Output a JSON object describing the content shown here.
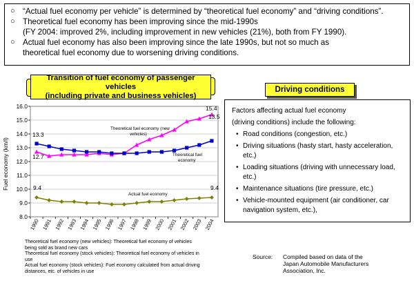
{
  "bullets": [
    {
      "marker": "○",
      "text": "“Actual fuel economy per vehicle” is determined by “theoretical fuel economy” and “driving conditions”."
    },
    {
      "marker": "○",
      "text": "Theoretical fuel economy has been improving since the mid-1990s\n(FY 2004: improved 2%, including improvement in new vehicles (21%), both from FY 1990)."
    },
    {
      "marker": "○",
      "text": " Actual fuel economy has also been improving since the late 1990s, but not so much as\ntheoretical fuel economy due to worsening driving conditions."
    }
  ],
  "chart_title": "Transition of fuel economy of passenger vehicles\n(including private and business vehicles)",
  "driving": {
    "title": "Driving conditions",
    "intro_line1": "Factors affecting actual fuel economy",
    "intro_line2": " (driving conditions) include the following:",
    "items": [
      "Road conditions (congestion, etc.)",
      "Driving situations (hasty start, hasty acceleration, etc.)",
      "Loading situations (driving with unnecessary load, etc.)",
      "Maintenance situations (tire pressure, etc.)",
      "Vehicle-mounted equipment (air conditioner, car navigation system, etc.),"
    ],
    "bullet_char": "•"
  },
  "chart_data": {
    "type": "line",
    "title": "Transition of fuel economy of passenger vehicles (including private and business vehicles)",
    "ylabel": "Fuel economy (km/l)",
    "xlabel": "",
    "ylim": [
      8.0,
      16.0
    ],
    "yticks": [
      "8.0",
      "9.0",
      "10.0",
      "11.0",
      "12.0",
      "13.0",
      "14.0",
      "15.0",
      "16.0"
    ],
    "categories": [
      "1990",
      "1991",
      "1992",
      "1993",
      "1994",
      "1995",
      "1996",
      "1997",
      "1998",
      "1999",
      "2000",
      "2001",
      "2002",
      "2003",
      "2004"
    ],
    "series": [
      {
        "name": "Theoretical fuel economy (new vehicles)",
        "color": "#ff00ff",
        "marker": "triangle",
        "values": [
          12.7,
          12.4,
          12.5,
          12.5,
          12.5,
          12.6,
          12.5,
          12.6,
          13.2,
          13.6,
          13.9,
          14.3,
          14.9,
          15.1,
          15.4
        ]
      },
      {
        "name": "Theoretical fuel economy",
        "color": "#0000cc",
        "marker": "square",
        "values": [
          13.3,
          13.1,
          12.9,
          12.8,
          12.7,
          12.7,
          12.6,
          12.6,
          12.6,
          12.7,
          12.7,
          12.8,
          13.0,
          13.2,
          13.5
        ]
      },
      {
        "name": "Actual fuel economy",
        "color": "#808000",
        "marker": "diamond",
        "values": [
          9.4,
          9.2,
          9.1,
          9.1,
          9.0,
          9.0,
          8.9,
          8.9,
          9.0,
          9.1,
          9.1,
          9.2,
          9.3,
          9.35,
          9.4
        ]
      }
    ],
    "series_labels": {
      "new_line1": "Theoretical fuel economy (new",
      "new_line2": "vehicles)",
      "theo_line1": "Theoretical fuel",
      "theo_line2": "economy",
      "actual": "Actual fuel economy"
    },
    "data_labels": {
      "new_start": "12.7",
      "new_end": "15.4",
      "theo_start": "13.3",
      "theo_end": "13.5",
      "actual_start": "9.4",
      "actual_end": "9.4"
    }
  },
  "notes": [
    "Theoretical fuel economy (new vehicles): Theoretical fuel economy of vehicles",
    "being sold as brand new cars",
    "Theoretical fuel economy (stock vehicles): Theoretical fuel economy of vehicles in",
    "use",
    "Actual fuel economy (stock vehicles): Fuel economy calculated from actual driving",
    "distances, etc. of vehicles in use"
  ],
  "source": {
    "label": "Source:",
    "line1": "Compiled based on data of the",
    "line2": "Japan Automobile Manufacturers",
    "line3": "Association, Inc."
  }
}
